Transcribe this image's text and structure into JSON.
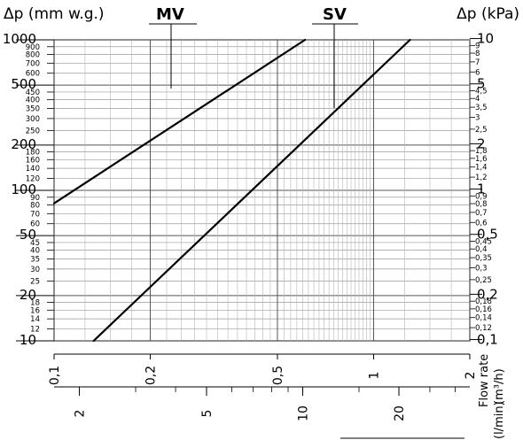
{
  "chart_data": {
    "type": "line",
    "title_left": "Δp (mm w.g.)",
    "title_right": "Δp (kPa)",
    "xlabel_top_axis_unit": "(m³/h)",
    "xlabel_bottom_axis_unit": "(l/min)",
    "xlabel_caption": "Flow rate",
    "x_scale": "log",
    "y_scale": "log",
    "xlim_m3h": [
      0.1,
      2
    ],
    "ylim_mmwg": [
      10,
      1000
    ],
    "grid": true,
    "series": [
      {
        "name": "MV",
        "x_m3h": [
          0.1,
          0.61
        ],
        "y_mmwg": [
          82,
          1000
        ]
      },
      {
        "name": "SV",
        "x_m3h": [
          0.133,
          1.3
        ],
        "y_mmwg": [
          10,
          1000
        ]
      }
    ],
    "left_ticks_major": [
      {
        "value": 10,
        "label": "10"
      },
      {
        "value": 20,
        "label": "20"
      },
      {
        "value": 50,
        "label": "50"
      },
      {
        "value": 100,
        "label": "100"
      },
      {
        "value": 200,
        "label": "200"
      },
      {
        "value": 500,
        "label": "500"
      },
      {
        "value": 1000,
        "label": "1000"
      }
    ],
    "left_ticks_minor": [
      {
        "value": 12,
        "label": "12"
      },
      {
        "value": 14,
        "label": "14"
      },
      {
        "value": 16,
        "label": "16"
      },
      {
        "value": 18,
        "label": "18"
      },
      {
        "value": 25,
        "label": "25"
      },
      {
        "value": 30,
        "label": "30"
      },
      {
        "value": 35,
        "label": "35"
      },
      {
        "value": 40,
        "label": "40"
      },
      {
        "value": 45,
        "label": "45"
      },
      {
        "value": 60,
        "label": "60"
      },
      {
        "value": 70,
        "label": "70"
      },
      {
        "value": 80,
        "label": "80"
      },
      {
        "value": 90,
        "label": "90"
      },
      {
        "value": 120,
        "label": "120"
      },
      {
        "value": 140,
        "label": "140"
      },
      {
        "value": 160,
        "label": "160"
      },
      {
        "value": 180,
        "label": "180"
      },
      {
        "value": 250,
        "label": "250"
      },
      {
        "value": 300,
        "label": "300"
      },
      {
        "value": 350,
        "label": "350"
      },
      {
        "value": 400,
        "label": "400"
      },
      {
        "value": 450,
        "label": "450"
      },
      {
        "value": 600,
        "label": "600"
      },
      {
        "value": 700,
        "label": "700"
      },
      {
        "value": 800,
        "label": "800"
      },
      {
        "value": 900,
        "label": "900"
      }
    ],
    "right_ticks_major": [
      {
        "value": 0.1,
        "label": "0,1"
      },
      {
        "value": 0.2,
        "label": "0,2"
      },
      {
        "value": 0.5,
        "label": "0,5"
      },
      {
        "value": 1,
        "label": "1"
      },
      {
        "value": 2,
        "label": "2"
      },
      {
        "value": 5,
        "label": "5"
      },
      {
        "value": 10,
        "label": "10"
      }
    ],
    "right_ticks_minor": [
      {
        "value": 0.12,
        "label": "0,12"
      },
      {
        "value": 0.14,
        "label": "0,14"
      },
      {
        "value": 0.16,
        "label": "0,16"
      },
      {
        "value": 0.18,
        "label": "0,18"
      },
      {
        "value": 0.25,
        "label": "0,25"
      },
      {
        "value": 0.3,
        "label": "0,3"
      },
      {
        "value": 0.35,
        "label": "0,35"
      },
      {
        "value": 0.4,
        "label": "0,4"
      },
      {
        "value": 0.45,
        "label": "0,45"
      },
      {
        "value": 0.6,
        "label": "0,6"
      },
      {
        "value": 0.7,
        "label": "0,7"
      },
      {
        "value": 0.8,
        "label": "0,8"
      },
      {
        "value": 0.9,
        "label": "0,9"
      },
      {
        "value": 1.2,
        "label": "1,2"
      },
      {
        "value": 1.4,
        "label": "1,4"
      },
      {
        "value": 1.6,
        "label": "1,6"
      },
      {
        "value": 1.8,
        "label": "1,8"
      },
      {
        "value": 2.5,
        "label": "2,5"
      },
      {
        "value": 3,
        "label": "3"
      },
      {
        "value": 3.5,
        "label": "3,5"
      },
      {
        "value": 4,
        "label": "4"
      },
      {
        "value": 4.5,
        "label": "4,5"
      },
      {
        "value": 6,
        "label": "6"
      },
      {
        "value": 7,
        "label": "7"
      },
      {
        "value": 8,
        "label": "8"
      },
      {
        "value": 9,
        "label": "9"
      }
    ],
    "x_m3h_ticks": [
      {
        "value": 0.1,
        "label": "0,1"
      },
      {
        "value": 0.2,
        "label": "0,2"
      },
      {
        "value": 0.5,
        "label": "0,5"
      },
      {
        "value": 1,
        "label": "1"
      },
      {
        "value": 2,
        "label": "2"
      }
    ],
    "x_lmin_ticks_major": [
      {
        "value": 2,
        "label": "2"
      },
      {
        "value": 5,
        "label": "5"
      },
      {
        "value": 10,
        "label": "10"
      },
      {
        "value": 20,
        "label": "20"
      }
    ],
    "x_lmin_ticks_minor": [
      3,
      4,
      6,
      7,
      8,
      9,
      15,
      25,
      30
    ]
  }
}
